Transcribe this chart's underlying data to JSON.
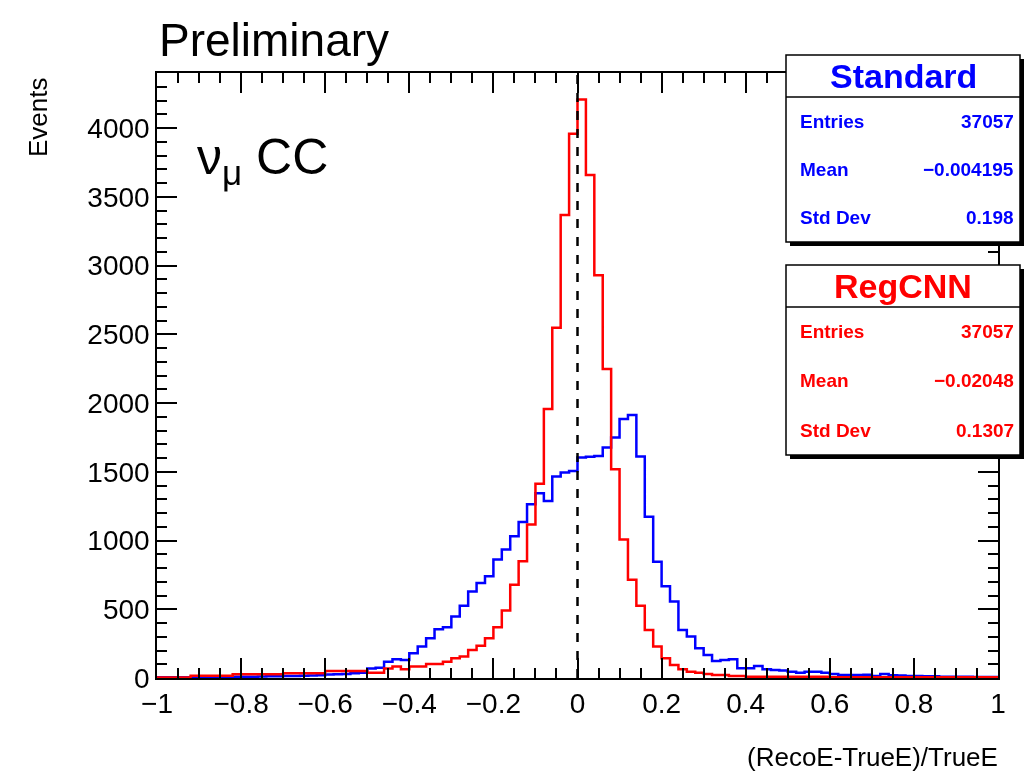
{
  "chart_data": {
    "type": "histogram",
    "title": "Preliminary",
    "xlabel": "(RecoE-TrueE)/TrueE",
    "ylabel": "Events",
    "bins": [
      -1.0,
      -0.98,
      -0.96,
      -0.94,
      -0.92,
      -0.9,
      -0.88,
      -0.86,
      -0.84,
      -0.82,
      -0.8,
      -0.78,
      -0.76,
      -0.74,
      -0.72,
      -0.7,
      -0.68,
      -0.66,
      -0.64,
      -0.62,
      -0.6,
      -0.58,
      -0.56,
      -0.54,
      -0.52,
      -0.5,
      -0.48,
      -0.46,
      -0.44,
      -0.42,
      -0.4,
      -0.38,
      -0.36,
      -0.34,
      -0.32,
      -0.3,
      -0.28,
      -0.26,
      -0.24,
      -0.22,
      -0.2,
      -0.18,
      -0.16,
      -0.14,
      -0.12,
      -0.1,
      -0.08,
      -0.06,
      -0.04,
      -0.02,
      0.0,
      0.02,
      0.04,
      0.06,
      0.08,
      0.1,
      0.12,
      0.14,
      0.16,
      0.18,
      0.2,
      0.22,
      0.24,
      0.26,
      0.28,
      0.3,
      0.32,
      0.34,
      0.36,
      0.38,
      0.4,
      0.42,
      0.44,
      0.46,
      0.48,
      0.5,
      0.52,
      0.54,
      0.56,
      0.58,
      0.6,
      0.62,
      0.64,
      0.66,
      0.68,
      0.7,
      0.72,
      0.74,
      0.76,
      0.78,
      0.8,
      0.82,
      0.84,
      0.86,
      0.88,
      0.9,
      0.92,
      0.94,
      0.96,
      0.98,
      1.0
    ],
    "series": [
      {
        "name": "Standard",
        "color": "#0000ff",
        "values": [
          5,
          5,
          6,
          6,
          7,
          7,
          8,
          8,
          9,
          9,
          10,
          10,
          11,
          12,
          13,
          14,
          15,
          16,
          18,
          20,
          25,
          28,
          30,
          34,
          38,
          70,
          75,
          119,
          136,
          131,
          180,
          229,
          290,
          355,
          370,
          448,
          526,
          630,
          691,
          740,
          861,
          934,
          1031,
          1134,
          1263,
          1343,
          1287,
          1465,
          1494,
          1506,
          1603,
          1610,
          1615,
          1676,
          1750,
          1883,
          1912,
          1611,
          1173,
          845,
          667,
          557,
          350,
          302,
          217,
          168,
          124,
          131,
          136,
          71,
          71,
          88,
          63,
          58,
          54,
          46,
          39,
          46,
          46,
          39,
          29,
          22,
          22,
          22,
          24,
          15,
          29,
          20,
          18,
          15,
          15,
          12,
          12,
          10,
          10,
          10,
          9,
          8,
          8,
          8
        ]
      },
      {
        "name": "RegCNN",
        "color": "#ff0000",
        "values": [
          3,
          3,
          3,
          3,
          17,
          17,
          17,
          17,
          17,
          27,
          27,
          27,
          27,
          27,
          27,
          34,
          34,
          34,
          34,
          34,
          51,
          51,
          51,
          51,
          51,
          39,
          39,
          70,
          83,
          63,
          83,
          83,
          102,
          102,
          119,
          144,
          156,
          204,
          234,
          290,
          370,
          491,
          679,
          849,
          1117,
          1413,
          1956,
          2547,
          3367,
          3958,
          4207,
          3659,
          2929,
          2248,
          1518,
          1007,
          715,
          526,
          350,
          229,
          144,
          95,
          63,
          46,
          39,
          30,
          22,
          22,
          15,
          15,
          10,
          10,
          10,
          10,
          10,
          10,
          10,
          10,
          10,
          10,
          5,
          5,
          5,
          5,
          5,
          5,
          5,
          5,
          5,
          5,
          5,
          5,
          5,
          5,
          5,
          5,
          5,
          5,
          5,
          5
        ]
      }
    ],
    "annotations": [
      "ν$_{μ}$ CC",
      "Entries",
      "37057",
      "Mean",
      "−0.004195",
      "Std Dev",
      "0.198",
      "Entries",
      "37057",
      "Mean",
      "−0.02048",
      "Std Dev",
      "0.1307"
    ],
    "xlim": [
      -1,
      1
    ],
    "ylim": [
      0,
      4400
    ],
    "xticks": [
      {
        "value": -1,
        "label": "−1"
      },
      {
        "value": -0.8,
        "label": "−0.8"
      },
      {
        "value": -0.6,
        "label": "−0.6"
      },
      {
        "value": -0.4,
        "label": "−0.4"
      },
      {
        "value": -0.2,
        "label": "−0.2"
      },
      0,
      0.2,
      0.4,
      0.6,
      0.8,
      1
    ],
    "yticks": [
      0,
      500,
      1000,
      1500,
      2000,
      2500,
      3000,
      3500,
      4000
    ],
    "ref_lines": [
      {
        "axis": "x",
        "value": 0,
        "color": "#000000",
        "line_style": "dashed"
      }
    ],
    "legend": false
  }
}
